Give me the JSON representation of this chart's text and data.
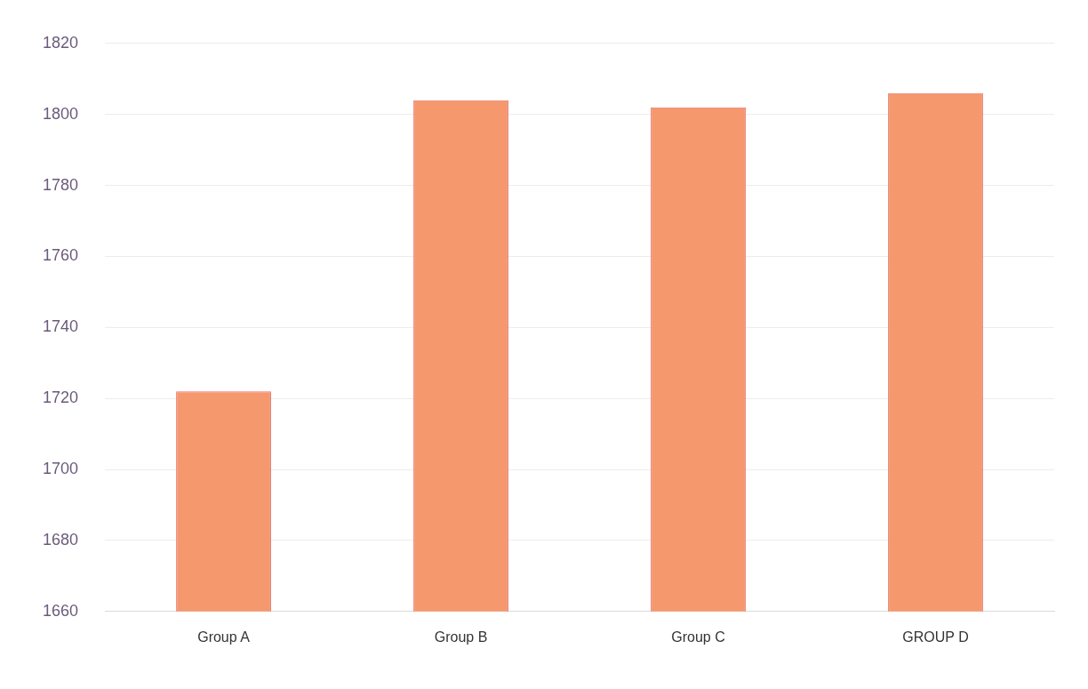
{
  "chart_data": {
    "type": "bar",
    "categories": [
      "Group A",
      "Group B",
      "Group C",
      "GROUP D"
    ],
    "values": [
      1722,
      1804,
      1802,
      1806
    ],
    "color": "#f5986e",
    "ylim": [
      1660,
      1820
    ],
    "yticks": [
      1660,
      1680,
      1700,
      1720,
      1740,
      1760,
      1780,
      1800,
      1820
    ],
    "grid": "y"
  }
}
